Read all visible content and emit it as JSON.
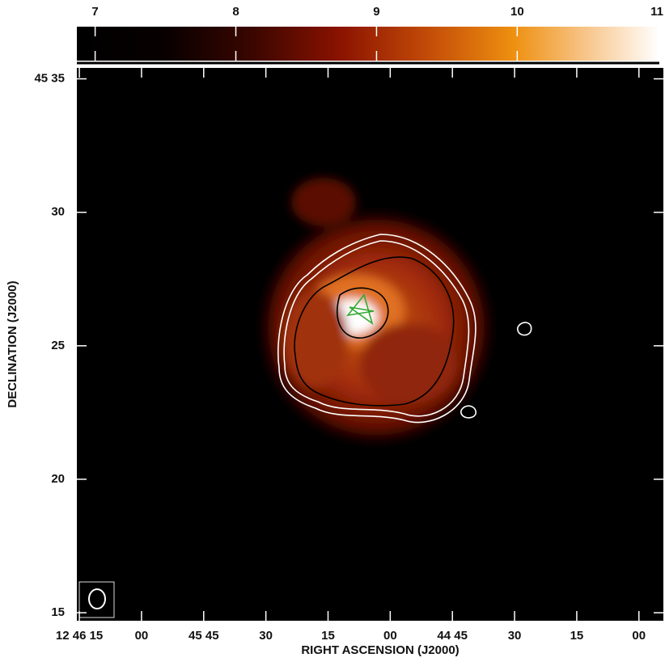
{
  "chart_data": {
    "type": "image",
    "xlabel": "RIGHT ASCENSION (J2000)",
    "ylabel": "DECLINATION (J2000)",
    "xlim": [
      2775.6,
      2634.1
    ],
    "xticks": [
      {
        "value": 2775,
        "label": "12 46 15"
      },
      {
        "value": 2760,
        "label": "00"
      },
      {
        "value": 2745,
        "label": "45 45"
      },
      {
        "value": 2730,
        "label": "30"
      },
      {
        "value": 2715,
        "label": "15"
      },
      {
        "value": 2700,
        "label": "00"
      },
      {
        "value": 2685,
        "label": "44 45"
      },
      {
        "value": 2670,
        "label": "30"
      },
      {
        "value": 2655,
        "label": "15"
      },
      {
        "value": 2640,
        "label": "00"
      }
    ],
    "ylim": [
      14.7,
      35.41
    ],
    "yticks": [
      {
        "value": 35,
        "label": "45 35"
      },
      30,
      25,
      20,
      15
    ],
    "colorbar": {
      "lim": [
        6.87,
        11.01
      ],
      "ticks": [
        7,
        8,
        9,
        10,
        11
      ]
    }
  }
}
